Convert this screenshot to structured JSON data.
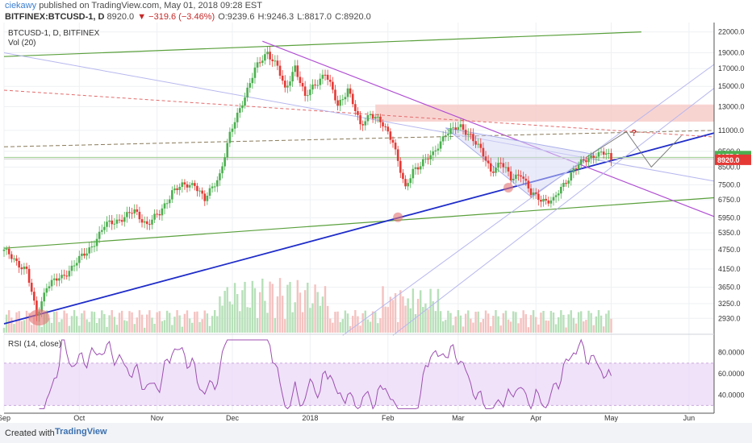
{
  "header": {
    "author": "ciekawy",
    "published": "published on TradingView.com, May 01, 2018 09:28 EST",
    "symbol": "BITFINEX:BTCUSD-1, D",
    "last": "8920.0",
    "change": "▼ −319.6 (−3.46%)",
    "o": "O:9239.6",
    "h": "H:9246.3",
    "l": "L:8817.0",
    "c": "C:8920.0"
  },
  "legend": {
    "symbol_line": "BTCUSD-1, D, BITFINEX",
    "volume_label": "Vol (20)",
    "rsi_label": "RSI (14, close)"
  },
  "colors": {
    "bull": "#4caf50",
    "bear": "#e53935",
    "blue_trend": "#1f2dc9",
    "purple_trend": "#b04fd3",
    "green_trend": "#5aa03c",
    "rsi_line": "#9c4fb0",
    "rsi_band": "#ead6f7",
    "resistance_zone": "#f5c6c2",
    "last_price_box": "#4caf50",
    "close_price_box": "#e53935"
  },
  "chart_data": {
    "type": "candlestick",
    "scale": "log",
    "price_ticks": [
      "22000.0",
      "19000.0",
      "17000.0",
      "15000.0",
      "13000.0",
      "11000.0",
      "9500.0",
      "8500.0",
      "7500.0",
      "6750.0",
      "5950.0",
      "5350.0",
      "4750.0",
      "4150.0",
      "3650.0",
      "3250.0",
      "2930.0"
    ],
    "price_tick_values": [
      22000,
      19000,
      17000,
      15000,
      13000,
      11000,
      9500,
      8500,
      7500,
      6750,
      5950,
      5350,
      4750,
      4150,
      3650,
      3250,
      2930
    ],
    "price_labels": {
      "last": "9155.2",
      "close": "8920.0"
    },
    "ylim": [
      2650,
      23500
    ],
    "time_ticks": [
      "Sep",
      "Oct",
      "Nov",
      "Dec",
      "2018",
      "Feb",
      "Mar",
      "Apr",
      "May",
      "Jun"
    ],
    "time_tick_days": [
      0,
      30,
      61,
      91,
      122,
      153,
      181,
      212,
      242,
      273
    ],
    "xlim": [
      0,
      283
    ],
    "keypoints": [
      [
        0,
        4700
      ],
      [
        4,
        4450
      ],
      [
        9,
        4100
      ],
      [
        13,
        2980
      ],
      [
        17,
        3700
      ],
      [
        23,
        3900
      ],
      [
        28,
        4300
      ],
      [
        33,
        4650
      ],
      [
        40,
        5600
      ],
      [
        46,
        5900
      ],
      [
        52,
        6200
      ],
      [
        57,
        5700
      ],
      [
        62,
        6100
      ],
      [
        67,
        7200
      ],
      [
        71,
        7400
      ],
      [
        76,
        7600
      ],
      [
        80,
        6700
      ],
      [
        86,
        8100
      ],
      [
        90,
        10600
      ],
      [
        95,
        13500
      ],
      [
        100,
        16800
      ],
      [
        105,
        19200
      ],
      [
        109,
        17200
      ],
      [
        112,
        14500
      ],
      [
        116,
        17400
      ],
      [
        120,
        13800
      ],
      [
        124,
        15300
      ],
      [
        128,
        16500
      ],
      [
        133,
        13100
      ],
      [
        137,
        14800
      ],
      [
        142,
        11300
      ],
      [
        146,
        12500
      ],
      [
        150,
        11600
      ],
      [
        155,
        10300
      ],
      [
        160,
        7200
      ],
      [
        163,
        8300
      ],
      [
        167,
        8900
      ],
      [
        171,
        9200
      ],
      [
        176,
        10900
      ],
      [
        182,
        11200
      ],
      [
        186,
        10700
      ],
      [
        190,
        9500
      ],
      [
        194,
        8300
      ],
      [
        198,
        8800
      ],
      [
        202,
        7800
      ],
      [
        206,
        8200
      ],
      [
        210,
        7000
      ],
      [
        214,
        6800
      ],
      [
        219,
        6700
      ],
      [
        223,
        7500
      ],
      [
        227,
        8400
      ],
      [
        232,
        8900
      ],
      [
        236,
        9400
      ],
      [
        240,
        9300
      ],
      [
        242,
        8920
      ]
    ],
    "annotations": [
      "?"
    ],
    "rsi_ticks": [
      "80.0000",
      "60.0000",
      "40.0000"
    ],
    "rsi_tick_values": [
      80,
      60,
      40
    ],
    "rsi_band": [
      30,
      70
    ],
    "rsi_ylim": [
      25,
      95
    ]
  }
}
